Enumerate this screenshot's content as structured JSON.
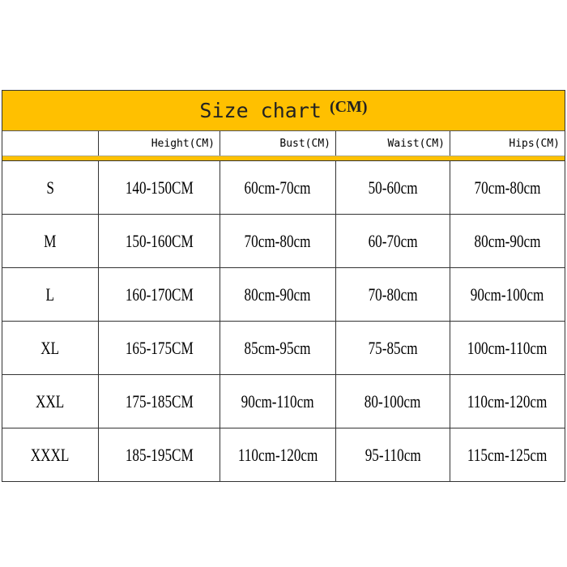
{
  "title": {
    "text": "Size chart",
    "unit": "(CM)"
  },
  "colors": {
    "header_band": "#FFC000",
    "border": "#333333"
  },
  "headers": [
    "",
    "Height(CM)",
    "Bust(CM)",
    "Waist(CM)",
    "Hips(CM)"
  ],
  "rows": [
    [
      "S",
      "140-150CM",
      "60cm-70cm",
      "50-60cm",
      "70cm-80cm"
    ],
    [
      "M",
      "150-160CM",
      "70cm-80cm",
      "60-70cm",
      "80cm-90cm"
    ],
    [
      "L",
      "160-170CM",
      "80cm-90cm",
      "70-80cm",
      "90cm-100cm"
    ],
    [
      "XL",
      "165-175CM",
      "85cm-95cm",
      "75-85cm",
      "100cm-110cm"
    ],
    [
      "XXL",
      "175-185CM",
      "90cm-110cm",
      "80-100cm",
      "110cm-120cm"
    ],
    [
      "XXXL",
      "185-195CM",
      "110cm-120cm",
      "95-110cm",
      "115cm-125cm"
    ]
  ]
}
